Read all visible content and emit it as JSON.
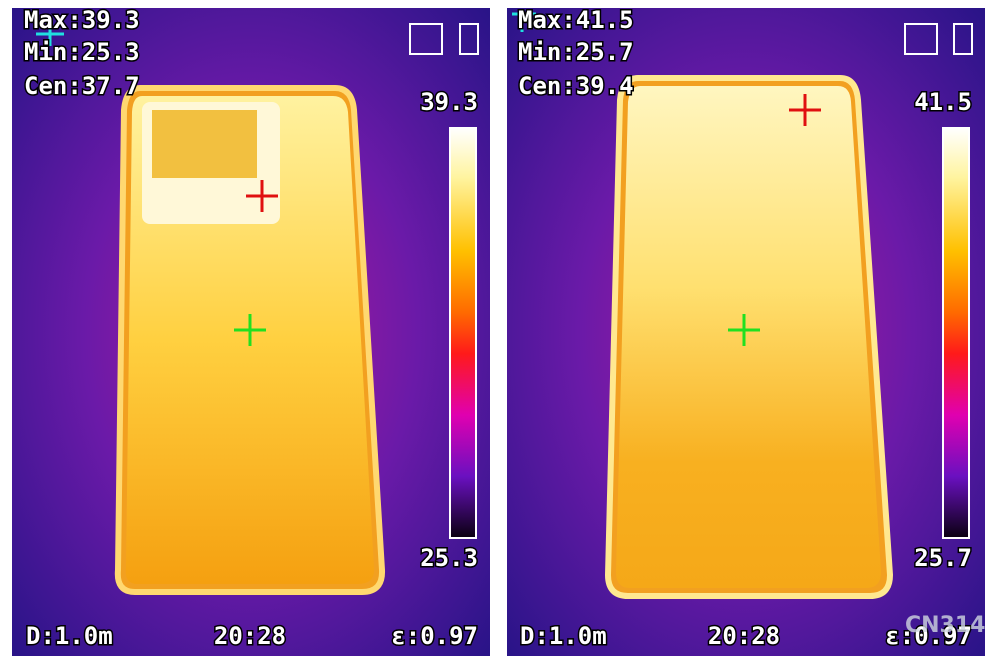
{
  "panels": [
    {
      "max": "Max:39.3",
      "min": "Min:25.3",
      "cen": "Cen:37.7",
      "scale_max": "39.3",
      "scale_min": "25.3",
      "distance": "D:1.0m",
      "time": "20:28",
      "emissivity": "ε:0.97"
    },
    {
      "max": "Max:41.5",
      "min": "Min:25.7",
      "cen": "Cen:39.4",
      "scale_max": "41.5",
      "scale_min": "25.7",
      "distance": "D:1.0m",
      "time": "20:28",
      "emissivity": "ε:0.97"
    }
  ],
  "watermark": "CN314"
}
